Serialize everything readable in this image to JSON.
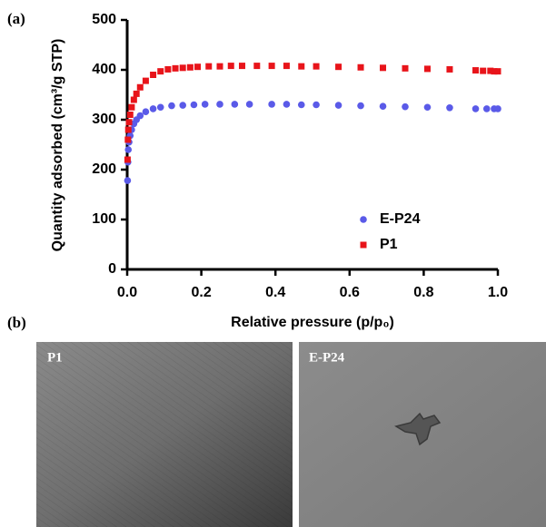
{
  "chart_data": {
    "type": "scatter",
    "panel_label": "(a)",
    "x_label": "Relative pressure (p/p₀)",
    "y_label": "Quantity adsorbed (cm³/g STP)",
    "xlim": [
      0,
      1
    ],
    "ylim": [
      0,
      500
    ],
    "xticks": [
      {
        "value": 0,
        "label": "0.0"
      },
      0.2,
      0.4,
      0.6,
      0.8,
      {
        "value": 1,
        "label": "1.0"
      }
    ],
    "yticks": [
      0,
      100,
      200,
      300,
      400,
      500
    ],
    "legend": "lower right",
    "series": [
      {
        "name": "E-P24",
        "color": "#5a5ae8",
        "marker": "circle",
        "x": [
          0.001,
          0.002,
          0.003,
          0.005,
          0.008,
          0.012,
          0.018,
          0.025,
          0.035,
          0.05,
          0.07,
          0.09,
          0.12,
          0.15,
          0.18,
          0.21,
          0.25,
          0.29,
          0.33,
          0.39,
          0.43,
          0.47,
          0.51,
          0.57,
          0.63,
          0.69,
          0.75,
          0.81,
          0.87,
          0.94,
          0.97,
          0.99,
          1.0
        ],
        "values": [
          178,
          215,
          240,
          255,
          268,
          280,
          292,
          300,
          308,
          316,
          322,
          325,
          328,
          329,
          330,
          331,
          331,
          331,
          331,
          331,
          331,
          330,
          330,
          329,
          328,
          327,
          326,
          325,
          324,
          322,
          322,
          322,
          322
        ]
      },
      {
        "name": "P1",
        "color": "#e8141a",
        "marker": "square",
        "x": [
          0.001,
          0.002,
          0.003,
          0.005,
          0.008,
          0.012,
          0.018,
          0.025,
          0.035,
          0.05,
          0.07,
          0.09,
          0.11,
          0.13,
          0.15,
          0.17,
          0.19,
          0.22,
          0.25,
          0.28,
          0.31,
          0.35,
          0.39,
          0.43,
          0.47,
          0.51,
          0.57,
          0.63,
          0.69,
          0.75,
          0.81,
          0.87,
          0.94,
          0.96,
          0.98,
          0.99,
          1.0
        ],
        "values": [
          220,
          260,
          280,
          295,
          310,
          325,
          340,
          352,
          365,
          378,
          390,
          397,
          401,
          403,
          404,
          405,
          406,
          407,
          407,
          408,
          408,
          408,
          408,
          408,
          407,
          407,
          406,
          405,
          404,
          403,
          402,
          401,
          399,
          398,
          398,
          397,
          397
        ]
      }
    ]
  },
  "images": {
    "panel_label": "(b)",
    "items": [
      {
        "label": "P1"
      },
      {
        "label": "E-P24"
      }
    ]
  }
}
